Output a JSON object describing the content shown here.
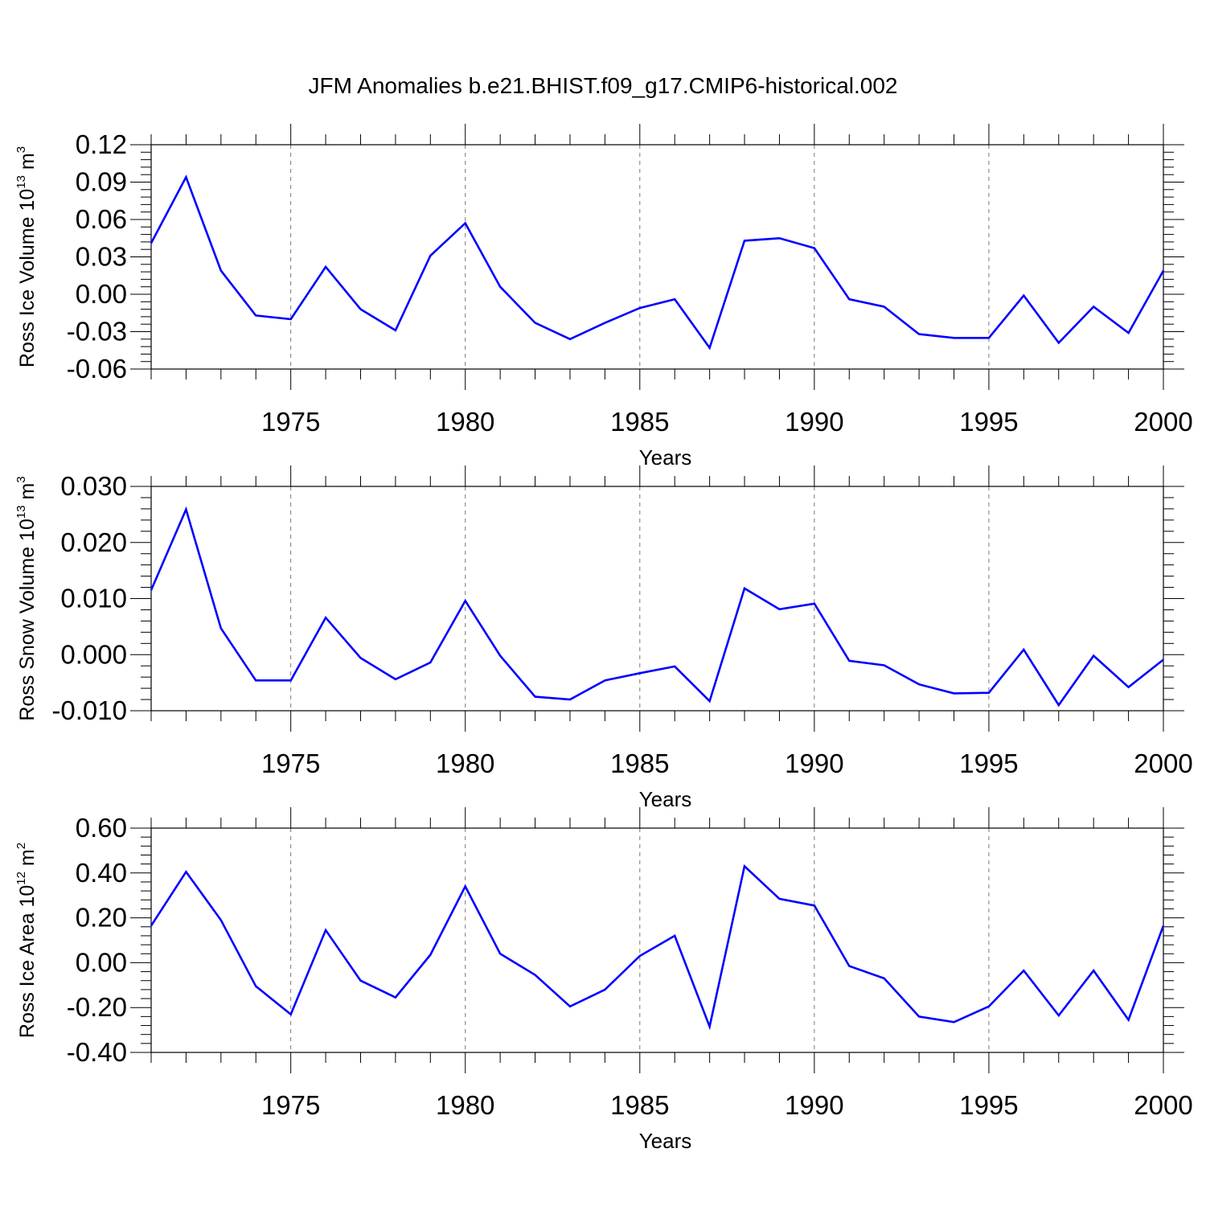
{
  "title": "JFM Anomalies b.e21.BHIST.f09_g17.CMIP6-historical.002",
  "chart_data": [
    {
      "type": "line",
      "ylabel": "Ross Ice Volume 10^13 m^3",
      "ylabel_parts": {
        "main": "Ross Ice Volume 10",
        "exp": "13",
        "unit": "m",
        "unit_exp": "3"
      },
      "xlabel": "Years",
      "xlim": [
        1971,
        2000
      ],
      "ylim": [
        -0.06,
        0.12
      ],
      "yticks": [
        0.12,
        0.09,
        0.06,
        0.03,
        0.0,
        -0.03,
        -0.06
      ],
      "ytick_labels": [
        "0.12",
        "0.09",
        "0.06",
        "0.03",
        "0.00",
        "-0.03",
        "-0.06"
      ],
      "xticks": [
        1975,
        1980,
        1985,
        1990,
        1995,
        2000
      ],
      "xtick_labels": [
        "1975",
        "1980",
        "1985",
        "1990",
        "1995",
        "2000"
      ],
      "color": "#0000ff",
      "x": [
        1971,
        1972,
        1973,
        1974,
        1975,
        1976,
        1977,
        1978,
        1979,
        1980,
        1981,
        1982,
        1983,
        1984,
        1985,
        1986,
        1987,
        1988,
        1989,
        1990,
        1991,
        1992,
        1993,
        1994,
        1995,
        1996,
        1997,
        1998,
        1999,
        2000
      ],
      "values": [
        0.041,
        0.094,
        0.019,
        -0.017,
        -0.02,
        0.022,
        -0.012,
        -0.029,
        0.031,
        0.057,
        0.006,
        -0.023,
        -0.036,
        -0.023,
        -0.011,
        -0.004,
        -0.043,
        0.043,
        0.045,
        0.037,
        -0.004,
        -0.01,
        -0.032,
        -0.035,
        -0.035,
        -0.001,
        -0.039,
        -0.01,
        -0.031,
        0.019
      ]
    },
    {
      "type": "line",
      "ylabel": "Ross Snow Volume 10^13 m^3",
      "ylabel_parts": {
        "main": "Ross Snow Volume 10",
        "exp": "13",
        "unit": "m",
        "unit_exp": "3"
      },
      "xlabel": "Years",
      "xlim": [
        1971,
        2000
      ],
      "ylim": [
        -0.01,
        0.03
      ],
      "yticks": [
        0.03,
        0.02,
        0.01,
        0.0,
        -0.01
      ],
      "ytick_labels": [
        "0.030",
        "0.020",
        "0.010",
        "0.000",
        "-0.010"
      ],
      "xticks": [
        1975,
        1980,
        1985,
        1990,
        1995,
        2000
      ],
      "xtick_labels": [
        "1975",
        "1980",
        "1985",
        "1990",
        "1995",
        "2000"
      ],
      "color": "#0000ff",
      "x": [
        1971,
        1972,
        1973,
        1974,
        1975,
        1976,
        1977,
        1978,
        1979,
        1980,
        1981,
        1982,
        1983,
        1984,
        1985,
        1986,
        1987,
        1988,
        1989,
        1990,
        1991,
        1992,
        1993,
        1994,
        1995,
        1996,
        1997,
        1998,
        1999,
        2000
      ],
      "values": [
        0.0115,
        0.0259,
        0.0047,
        -0.0046,
        -0.0046,
        0.0066,
        -0.0006,
        -0.0044,
        -0.0014,
        0.0096,
        -0.0002,
        -0.0075,
        -0.008,
        -0.0046,
        -0.0033,
        -0.0021,
        -0.0083,
        0.0118,
        0.0081,
        0.0091,
        -0.0011,
        -0.0019,
        -0.0053,
        -0.0069,
        -0.0068,
        0.0009,
        -0.009,
        -0.0002,
        -0.0058,
        -0.0009
      ]
    },
    {
      "type": "line",
      "ylabel": "Ross Ice Area 10^12 m^2",
      "ylabel_parts": {
        "main": "Ross Ice Area 10",
        "exp": "12",
        "unit": "m",
        "unit_exp": "2"
      },
      "xlabel": "Years",
      "xlim": [
        1971,
        2000
      ],
      "ylim": [
        -0.4,
        0.6
      ],
      "yticks": [
        0.6,
        0.4,
        0.2,
        0.0,
        -0.2,
        -0.4
      ],
      "ytick_labels": [
        "0.60",
        "0.40",
        "0.20",
        "0.00",
        "-0.20",
        "-0.40"
      ],
      "xticks": [
        1975,
        1980,
        1985,
        1990,
        1995,
        2000
      ],
      "xtick_labels": [
        "1975",
        "1980",
        "1985",
        "1990",
        "1995",
        "2000"
      ],
      "color": "#0000ff",
      "x": [
        1971,
        1972,
        1973,
        1974,
        1975,
        1976,
        1977,
        1978,
        1979,
        1980,
        1981,
        1982,
        1983,
        1984,
        1985,
        1986,
        1987,
        1988,
        1989,
        1990,
        1991,
        1992,
        1993,
        1994,
        1995,
        1996,
        1997,
        1998,
        1999,
        2000
      ],
      "values": [
        0.165,
        0.405,
        0.19,
        -0.105,
        -0.23,
        0.145,
        -0.08,
        -0.155,
        0.035,
        0.34,
        0.04,
        -0.055,
        -0.195,
        -0.12,
        0.03,
        0.12,
        -0.285,
        0.43,
        0.285,
        0.255,
        -0.015,
        -0.07,
        -0.24,
        -0.265,
        -0.195,
        -0.035,
        -0.235,
        -0.035,
        -0.255,
        0.165
      ]
    }
  ]
}
